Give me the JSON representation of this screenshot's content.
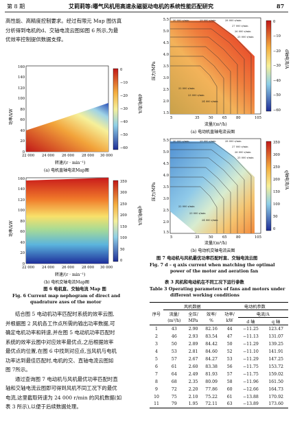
{
  "header": {
    "issue": "第 8 期",
    "title": "艾莉莉等:曝气风机用高速永磁驱动电机的系统性能匹配研究",
    "page": "87"
  },
  "left_intro": [
    "高性能、高精度控制要求。经过有限元 Map 图仿真",
    "分析得到电机的d、交轴电流云图如图 6 所示,为最",
    "优效率控制提供数据支撑。"
  ],
  "fig6a": {
    "ylabel": "功率/kW",
    "xlabel": "转速/(r · min⁻¹)",
    "cbar_label": "d轴电流/A",
    "caption": "(a) 电机直轴电流Map图",
    "x_ticks": [
      "22 000",
      "24 000",
      "26 000",
      "28 000",
      "30 000"
    ],
    "y_ticks": [
      "160",
      "140",
      "120",
      "100",
      "80",
      "60",
      "40",
      "20",
      "0"
    ],
    "c_ticks": [
      "0",
      "−10",
      "−20",
      "−30",
      "−40",
      "−50",
      "−60"
    ]
  },
  "fig6b": {
    "ylabel": "功率/kW",
    "xlabel": "转速/(r · min⁻¹)",
    "cbar_label": "q轴电流/A",
    "caption": "(b) 电机交轴电流Map图",
    "x_ticks": [
      "22 000",
      "24 000",
      "26 000",
      "28 000",
      "30 000"
    ],
    "y_ticks": [
      "160",
      "140",
      "120",
      "100",
      "80",
      "60",
      "40",
      "20",
      "0"
    ],
    "c_ticks": [
      "350",
      "300",
      "250",
      "200",
      "150",
      "100",
      "50",
      "0"
    ]
  },
  "fig6_caption": {
    "cn": "图 6 电机直、交轴电流 Map 图",
    "en1": "Fig. 6 Current map nephogram of direct and",
    "en2": "quadrature axes of the motor"
  },
  "left_body": [
    "结合图 5 电动机功率匹配时系统的效率云图,",
    "并根据图 2 风机各工作点所需的输出功率数据,可",
    "确定电机功率和转速,并在图 5 电动机功率匹配时",
    "系统的效率云图中对应效率最优点,之后根据效率",
    "最优点的位置,在图 6 中找到对应点,当风机与电机",
    "功率达到最佳匹配时,电机的交、直轴电流云图如",
    "图 7所示。",
    "通过查询图 7 电动机与风机最优功率匹配时直",
    "轴和交轴电流云图即可得到风机不同工况下的最优",
    "电流,这里截取转速为 24 000 r/min 的风机数据(如",
    "表 3 所示),以便于后续数据处理。"
  ],
  "fig7a": {
    "ylabel": "压力/MPa",
    "xlabel": "流量/(m³/h)",
    "cbar_label": "d轴电流/A",
    "caption": "(a) 电动机直轴电流云图",
    "x_ticks": [
      "5",
      "35",
      "50",
      "65",
      "80",
      "105"
    ],
    "y_ticks": [
      "5.5",
      "5.0",
      "4.5",
      "4.0",
      "3.5",
      "3.0",
      "2.5",
      "2.0",
      "1.5"
    ],
    "c_ticks": [
      "0",
      "−10",
      "−20",
      "−30",
      "−40",
      "−50",
      "−60"
    ],
    "speed_labels": [
      "30 000 r/min",
      "29 000 r/min",
      "28 000 r/min",
      "27 000 r/min",
      "26 000 r/min",
      "25 000 r/min",
      "22 000 r/min",
      "23 000 r/min",
      "24 000 r/min"
    ]
  },
  "fig7b": {
    "ylabel": "压力/MPa",
    "xlabel": "流量/(m³/h)",
    "cbar_label": "q轴电流/A",
    "caption": "(b) 电动机交轴电流云图",
    "x_ticks": [
      "5",
      "35",
      "50",
      "65",
      "80",
      "105"
    ],
    "y_ticks": [
      "5.5",
      "5.0",
      "4.5",
      "4.0",
      "3.5",
      "3.0",
      "2.5",
      "2.0",
      "1.5"
    ],
    "c_ticks": [
      "350",
      "300",
      "250",
      "200",
      "150",
      "100",
      "50",
      "0"
    ],
    "speed_labels": [
      "30 000 r/min",
      "29 000 r/min",
      "28 000 r/min",
      "27 000 r/min",
      "26 000 r/min",
      "25 000 r/min",
      "22 000 r/min",
      "23 000 r/min",
      "24 000 r/min"
    ]
  },
  "fig7_caption": {
    "cn": "图 7 电动机与风机最优功率匹配时直、交轴电流云图",
    "en1": "Fig. 7 d – q axis current when matching the optimal",
    "en2": "power of the motor and aeration fan"
  },
  "table3": {
    "title_cn": "表 3 风机和电动机在不同工况下运行参数",
    "title_en1": "Table 3 Operating parameters of fans and motors under",
    "title_en2": "different working conditions",
    "group_fan": "风机数据",
    "group_motor": "电动机参数",
    "current_group": "电流/A",
    "h_order": "序号",
    "h_flow": "流量/",
    "h_flow_unit": "(m³/h)",
    "h_press": "全压/",
    "h_press_unit": "MPa",
    "h_eff": "效率/",
    "h_eff_unit": "%",
    "h_power": "功率/",
    "h_power_unit": "kW",
    "h_d": "d 轴",
    "h_q": "q 轴",
    "rows": [
      [
        "1",
        "43",
        "2.90",
        "82.16",
        "44",
        "−11.25",
        "123.47"
      ],
      [
        "2",
        "46",
        "2.93",
        "83.54",
        "47",
        "−11.13",
        "131.07"
      ],
      [
        "3",
        "50",
        "2.89",
        "84.42",
        "50",
        "−11.29",
        "139.25"
      ],
      [
        "4",
        "53",
        "2.81",
        "84.60",
        "52",
        "−11.10",
        "141.91"
      ],
      [
        "5",
        "57",
        "2.67",
        "84.27",
        "53",
        "−11.29",
        "147.25"
      ],
      [
        "6",
        "61",
        "2.60",
        "83.38",
        "56",
        "−11.75",
        "153.72"
      ],
      [
        "7",
        "64",
        "2.49",
        "81.93",
        "57",
        "−11.75",
        "159.02"
      ],
      [
        "8",
        "68",
        "2.35",
        "80.09",
        "58",
        "−11.96",
        "161.50"
      ],
      [
        "9",
        "72",
        "2.20",
        "77.86",
        "60",
        "−12.66",
        "164.73"
      ],
      [
        "10",
        "75",
        "2.10",
        "75.22",
        "61",
        "−13.88",
        "170.92"
      ],
      [
        "11",
        "79",
        "1.95",
        "72.11",
        "63",
        "−13.89",
        "173.60"
      ]
    ]
  }
}
